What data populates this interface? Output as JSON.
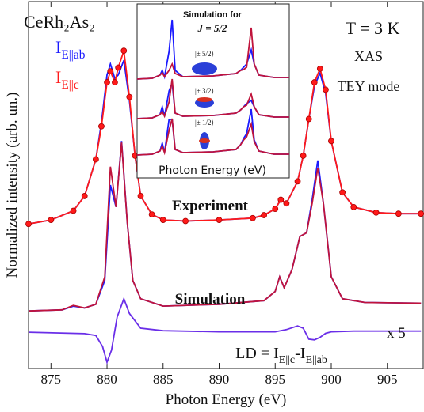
{
  "chart_data": [
    {
      "type": "line",
      "xlabel": "Photon Energy (eV)",
      "ylabel": "Normalized intensity (arb. un.)",
      "xlim": [
        873,
        908.2
      ],
      "ylim": [
        0,
        100
      ],
      "xticks": [
        875,
        880,
        885,
        890,
        895,
        900,
        905
      ],
      "annotations": [
        "CeRh₂As₂",
        "T = 3 K",
        "XAS",
        "TEY mode",
        "Experiment",
        "Simulation",
        "x 5",
        "LD = IE||c-IE||ab"
      ],
      "series": [
        {
          "name": "IE||ab",
          "color": "#1a1aff",
          "x": [
            873,
            875,
            877,
            878,
            879,
            879.5,
            880,
            880.3,
            880.7,
            881,
            881.5,
            882,
            882.5,
            883,
            884,
            885,
            887,
            890,
            893,
            894,
            895,
            895.5,
            896,
            897,
            897.5,
            898,
            898.5,
            899,
            899.5,
            900,
            901,
            902,
            904,
            906,
            908
          ],
          "values": [
            39.4,
            40.5,
            43,
            47,
            57,
            67,
            80,
            83,
            79,
            80,
            84,
            73,
            58,
            47,
            42,
            40.5,
            40.2,
            40.5,
            41,
            41.8,
            43.5,
            46,
            45,
            51,
            58,
            68,
            77,
            80.5,
            75,
            62,
            48,
            44,
            42.5,
            42.2,
            42.2
          ]
        },
        {
          "name": "IE||c",
          "color": "#ff1a1a",
          "marker": "circle",
          "x": [
            873,
            875,
            877,
            878,
            879,
            879.5,
            880,
            880.3,
            880.7,
            881,
            881.5,
            882,
            882.5,
            883,
            884,
            885,
            887,
            890,
            893,
            894,
            895,
            895.5,
            896,
            897,
            897.5,
            898,
            898.5,
            899,
            899.5,
            900,
            901,
            902,
            904,
            906,
            908
          ],
          "values": [
            39.4,
            40.5,
            43,
            47,
            57,
            66,
            78,
            81,
            78,
            82,
            86.6,
            74,
            58,
            47,
            42,
            40.5,
            40.2,
            40.5,
            41,
            41.8,
            43.5,
            46,
            45,
            51,
            58,
            68,
            78,
            81.7,
            76,
            62,
            48,
            44,
            42.5,
            42.2,
            42.2
          ]
        },
        {
          "color": "#1a1aff",
          "x": [
            873,
            876,
            877,
            878,
            879,
            879.8,
            880.3,
            880.8,
            881.3,
            881.8,
            882.3,
            883,
            885,
            890,
            894,
            895,
            895.4,
            895.8,
            896.5,
            897.2,
            897.8,
            898.3,
            898.8,
            899.3,
            900,
            901,
            903,
            908
          ],
          "values": [
            15.7,
            16,
            17,
            16.5,
            17.5,
            24,
            50,
            44,
            62,
            40,
            24,
            19,
            17,
            17.5,
            18.5,
            21,
            25,
            22,
            27,
            36,
            37,
            46,
            56.7,
            45,
            25,
            19,
            18,
            17.8
          ]
        },
        {
          "color": "#c0143c",
          "x": [
            873,
            876,
            877,
            878,
            879,
            879.8,
            880.3,
            880.8,
            881.3,
            881.8,
            882.3,
            883,
            885,
            890,
            894,
            895,
            895.4,
            895.8,
            896.5,
            897.2,
            897.8,
            898.3,
            898.8,
            899.3,
            900,
            901,
            903,
            908
          ],
          "values": [
            15.7,
            16,
            17.2,
            16.5,
            17.5,
            25,
            55,
            44,
            61.6,
            40,
            24,
            19,
            17,
            17.5,
            18.5,
            21,
            25,
            22,
            27,
            36,
            37,
            45,
            54.7,
            45,
            25,
            19,
            18,
            17.8
          ]
        },
        {
          "color": "#6a2ee8",
          "x": [
            873,
            878,
            879,
            879.6,
            880,
            880.4,
            880.9,
            881.5,
            882,
            883,
            885,
            890,
            895,
            896,
            897,
            897.5,
            898,
            898.5,
            899,
            899.5,
            900,
            902,
            908
          ],
          "values": [
            9.9,
            9.5,
            9,
            6,
            1.7,
            5,
            14,
            19,
            15,
            11,
            10.3,
            10,
            10,
            10.6,
            11.6,
            11,
            8,
            7.8,
            8.5,
            9.6,
            10,
            10.2,
            10.2
          ]
        }
      ]
    },
    {
      "type": "line",
      "title": "Simulation for",
      "subtitle": "J = 5/2",
      "xlabel": "Photon Energy (eV)",
      "xlim": [
        0,
        100
      ],
      "ylim": [
        0,
        100
      ],
      "annotations": [
        "|± 5/2⟩",
        "|± 3/2⟩",
        "|± 1/2⟩"
      ],
      "x": [
        0,
        10,
        15,
        16.5,
        18,
        21,
        23,
        25,
        30,
        50,
        65,
        68,
        70,
        72,
        75,
        77,
        80,
        90,
        100
      ],
      "series": [
        {
          "color": "#1a1aff",
          "values": [
            52.5,
            53,
            55,
            58,
            54,
            70,
            90,
            58,
            54,
            54.5,
            56,
            58,
            60,
            62,
            71,
            62,
            55,
            53.5,
            53.5
          ]
        },
        {
          "color": "#c0143c",
          "values": [
            52.5,
            53,
            55,
            56.5,
            54,
            58,
            62,
            56,
            54,
            54.5,
            56,
            58,
            58.5,
            60,
            85,
            62,
            55,
            53.5,
            53.5
          ]
        },
        {
          "color": "#1a1aff",
          "values": [
            27.5,
            28,
            30,
            35,
            29,
            45,
            50,
            31,
            29,
            29.5,
            31,
            33,
            35,
            37,
            39,
            35,
            30,
            28.5,
            28.5
          ]
        },
        {
          "color": "#c0143c",
          "values": [
            27.5,
            28,
            30,
            32,
            29,
            38,
            52.5,
            31,
            29,
            29.5,
            31,
            33,
            35,
            36,
            43,
            35,
            30,
            28.5,
            28.5
          ]
        },
        {
          "color": "#1a1aff",
          "values": [
            4.5,
            5,
            7,
            12,
            6,
            27,
            27,
            8,
            6,
            6.5,
            8,
            11,
            15,
            18,
            33.5,
            14,
            7,
            5,
            5
          ]
        },
        {
          "color": "#c0143c",
          "values": [
            4.5,
            5,
            7,
            10,
            6,
            20,
            27.5,
            8,
            6,
            6.5,
            8,
            11,
            14,
            16,
            24,
            13,
            7,
            5,
            5
          ]
        }
      ]
    }
  ]
}
